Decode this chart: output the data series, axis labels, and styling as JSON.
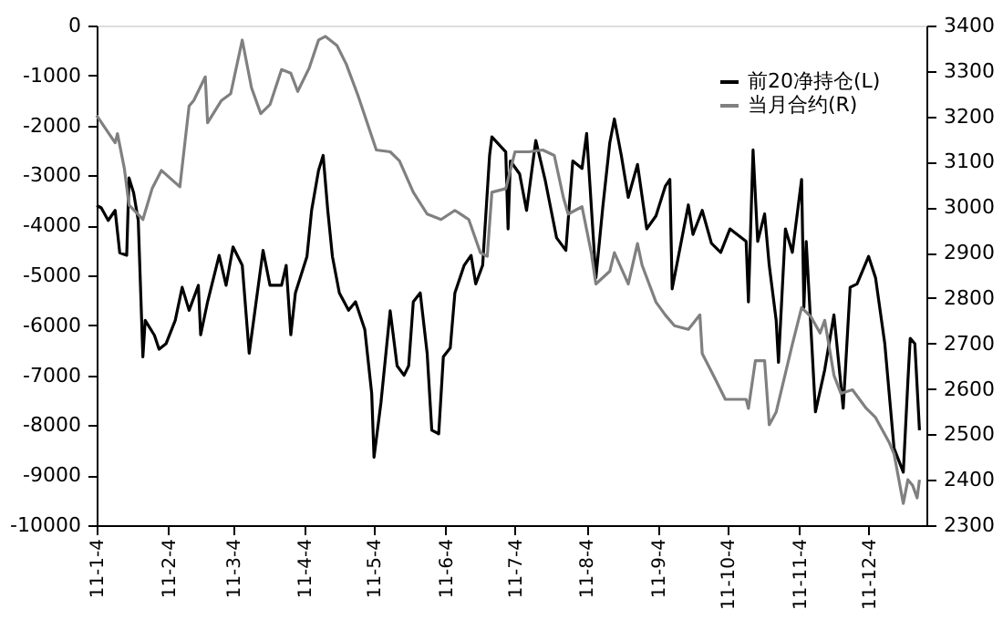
{
  "chart_data": {
    "type": "line",
    "xlim": [
      "2011-01-04",
      "2011-12-29"
    ],
    "xticks": [
      {
        "value": "2011-01-04",
        "label": "11-1-4"
      },
      {
        "value": "2011-02-04",
        "label": "11-2-4"
      },
      {
        "value": "2011-03-04",
        "label": "11-3-4"
      },
      {
        "value": "2011-04-04",
        "label": "11-4-4"
      },
      {
        "value": "2011-05-04",
        "label": "11-5-4"
      },
      {
        "value": "2011-06-04",
        "label": "11-6-4"
      },
      {
        "value": "2011-07-04",
        "label": "11-7-4"
      },
      {
        "value": "2011-08-04",
        "label": "11-8-4"
      },
      {
        "value": "2011-09-04",
        "label": "11-9-4"
      },
      {
        "value": "2011-10-04",
        "label": "11-10-4"
      },
      {
        "value": "2011-11-04",
        "label": "11-11-4"
      },
      {
        "value": "2011-12-04",
        "label": "11-12-4"
      }
    ],
    "ylim": [
      -10000,
      0
    ],
    "yticks": [
      -10000,
      -9000,
      -8000,
      -7000,
      -6000,
      -5000,
      -4000,
      -3000,
      -2000,
      -1000,
      0
    ],
    "y2lim": [
      2300,
      3400
    ],
    "y2ticks": [
      2300,
      2400,
      2500,
      2600,
      2700,
      2800,
      2900,
      3000,
      3100,
      3200,
      3300,
      3400
    ],
    "grid": false,
    "legend": "top right",
    "series": [
      {
        "name": "前20净持仓(L)",
        "color": "#000000",
        "x": [
          "2011-01-04",
          "2011-01-06",
          "2011-01-09",
          "2011-01-12",
          "2011-01-14",
          "2011-01-17",
          "2011-01-18",
          "2011-01-20",
          "2011-01-22",
          "2011-01-24",
          "2011-01-25",
          "2011-01-29",
          "2011-01-31",
          "2011-02-03",
          "2011-02-07",
          "2011-02-10",
          "2011-02-13",
          "2011-02-17",
          "2011-02-18",
          "2011-02-21",
          "2011-02-26",
          "2011-03-01",
          "2011-03-04",
          "2011-03-08",
          "2011-03-11",
          "2011-03-14",
          "2011-03-17",
          "2011-03-20",
          "2011-03-25",
          "2011-03-27",
          "2011-03-29",
          "2011-03-31",
          "2011-04-05",
          "2011-04-07",
          "2011-04-10",
          "2011-04-12",
          "2011-04-14",
          "2011-04-16",
          "2011-04-19",
          "2011-04-23",
          "2011-04-26",
          "2011-04-30",
          "2011-05-03",
          "2011-05-04",
          "2011-05-07",
          "2011-05-09",
          "2011-05-11",
          "2011-05-14",
          "2011-05-17",
          "2011-05-19",
          "2011-05-21",
          "2011-05-24",
          "2011-05-27",
          "2011-05-29",
          "2011-06-01",
          "2011-06-03",
          "2011-06-06",
          "2011-06-08",
          "2011-06-12",
          "2011-06-15",
          "2011-06-17",
          "2011-06-20",
          "2011-06-23",
          "2011-06-24",
          "2011-06-30",
          "2011-07-01",
          "2011-07-02",
          "2011-07-06",
          "2011-07-09",
          "2011-07-13",
          "2011-07-17",
          "2011-07-22",
          "2011-07-26",
          "2011-07-29",
          "2011-08-02",
          "2011-08-04",
          "2011-08-08",
          "2011-08-11",
          "2011-08-14",
          "2011-08-16",
          "2011-08-19",
          "2011-08-22",
          "2011-08-26",
          "2011-08-30",
          "2011-09-03",
          "2011-09-07",
          "2011-09-09",
          "2011-09-10",
          "2011-09-17",
          "2011-09-19",
          "2011-09-23",
          "2011-09-27",
          "2011-10-01",
          "2011-10-05",
          "2011-10-12",
          "2011-10-13",
          "2011-10-15",
          "2011-10-17",
          "2011-10-20",
          "2011-10-22",
          "2011-10-25",
          "2011-10-26",
          "2011-10-29",
          "2011-11-01",
          "2011-11-05",
          "2011-11-06",
          "2011-11-07",
          "2011-11-11",
          "2011-11-15",
          "2011-11-19",
          "2011-11-23",
          "2011-11-26",
          "2011-11-29",
          "2011-12-04",
          "2011-12-07",
          "2011-12-11",
          "2011-12-15",
          "2011-12-19",
          "2011-12-21",
          "2011-12-22",
          "2011-12-24",
          "2011-12-26"
        ],
        "values": [
          -3600,
          -3650,
          -3900,
          -3700,
          -4550,
          -4600,
          -3050,
          -3350,
          -3900,
          -6630,
          -5900,
          -6200,
          -6480,
          -6370,
          -5900,
          -5240,
          -5700,
          -5200,
          -6190,
          -5530,
          -4600,
          -5200,
          -4430,
          -4800,
          -6560,
          -5530,
          -4500,
          -5200,
          -5200,
          -4800,
          -6190,
          -5350,
          -4620,
          -3700,
          -2900,
          -2600,
          -3700,
          -4620,
          -5350,
          -5700,
          -5530,
          -6080,
          -7360,
          -8640,
          -7550,
          -6630,
          -5710,
          -6810,
          -7000,
          -6810,
          -5530,
          -5350,
          -6560,
          -8100,
          -8170,
          -6630,
          -6450,
          -5350,
          -4800,
          -4600,
          -5170,
          -4800,
          -2600,
          -2230,
          -2530,
          -4070,
          -2710,
          -2970,
          -3700,
          -2300,
          -3080,
          -4250,
          -4500,
          -2710,
          -2860,
          -2160,
          -5050,
          -3630,
          -2350,
          -1870,
          -2600,
          -3440,
          -2780,
          -4070,
          -3810,
          -3220,
          -3080,
          -5270,
          -3590,
          -4180,
          -3700,
          -4360,
          -4540,
          -4070,
          -4320,
          -5530,
          -2490,
          -4320,
          -3770,
          -4800,
          -5900,
          -6740,
          -4070,
          -4540,
          -3080,
          -5640,
          -4320,
          -7730,
          -6890,
          -5790,
          -7660,
          -5240,
          -5170,
          -4620,
          -5050,
          -6370,
          -8460,
          -8940,
          -7110,
          -6260,
          -6370,
          -8100
        ]
      },
      {
        "name": "当月合约(R)",
        "color": "#808080",
        "axis": "y2",
        "x": [
          "2011-01-04",
          "2011-01-12",
          "2011-01-13",
          "2011-01-16",
          "2011-01-18",
          "2011-01-24",
          "2011-01-28",
          "2011-02-01",
          "2011-02-09",
          "2011-02-13",
          "2011-02-15",
          "2011-02-20",
          "2011-02-21",
          "2011-02-27",
          "2011-03-03",
          "2011-03-08",
          "2011-03-12",
          "2011-03-16",
          "2011-03-20",
          "2011-03-25",
          "2011-03-29",
          "2011-04-01",
          "2011-04-06",
          "2011-04-10",
          "2011-04-13",
          "2011-04-18",
          "2011-04-22",
          "2011-04-27",
          "2011-04-30",
          "2011-05-05",
          "2011-05-11",
          "2011-05-15",
          "2011-05-21",
          "2011-05-27",
          "2011-06-02",
          "2011-06-08",
          "2011-06-14",
          "2011-06-19",
          "2011-06-22",
          "2011-06-24",
          "2011-06-30",
          "2011-07-04",
          "2011-07-10",
          "2011-07-16",
          "2011-07-21",
          "2011-07-25",
          "2011-07-27",
          "2011-08-02",
          "2011-08-06",
          "2011-08-08",
          "2011-08-14",
          "2011-08-16",
          "2011-08-22",
          "2011-08-26",
          "2011-08-28",
          "2011-09-03",
          "2011-09-07",
          "2011-09-11",
          "2011-09-17",
          "2011-09-22",
          "2011-09-23",
          "2011-09-29",
          "2011-10-03",
          "2011-10-12",
          "2011-10-13",
          "2011-10-16",
          "2011-10-20",
          "2011-10-22",
          "2011-10-25",
          "2011-11-01",
          "2011-11-05",
          "2011-11-09",
          "2011-11-13",
          "2011-11-15",
          "2011-11-19",
          "2011-11-22",
          "2011-11-27",
          "2011-12-03",
          "2011-12-07",
          "2011-12-13",
          "2011-12-15",
          "2011-12-19",
          "2011-12-21",
          "2011-12-23",
          "2011-12-25",
          "2011-12-26"
        ],
        "values": [
          3202,
          3142,
          3162,
          3085,
          3005,
          2973,
          3041,
          3081,
          3045,
          3223,
          3235,
          3287,
          3186,
          3235,
          3250,
          3368,
          3263,
          3206,
          3226,
          3303,
          3295,
          3255,
          3307,
          3368,
          3376,
          3356,
          3315,
          3247,
          3202,
          3126,
          3122,
          3102,
          3033,
          2985,
          2973,
          2993,
          2973,
          2900,
          2892,
          3033,
          3041,
          3122,
          3122,
          3126,
          3114,
          3020,
          2985,
          3001,
          2900,
          2831,
          2859,
          2900,
          2831,
          2920,
          2872,
          2791,
          2763,
          2739,
          2731,
          2763,
          2678,
          2618,
          2577,
          2577,
          2557,
          2662,
          2662,
          2521,
          2549,
          2698,
          2779,
          2759,
          2723,
          2751,
          2630,
          2590,
          2598,
          2557,
          2537,
          2481,
          2457,
          2348,
          2400,
          2388,
          2360,
          2400
        ]
      }
    ]
  }
}
